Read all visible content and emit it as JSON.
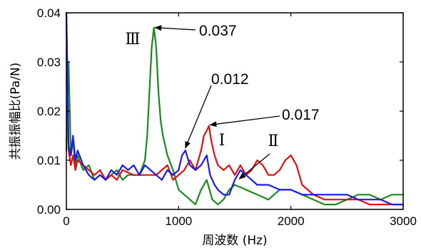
{
  "chart_data": {
    "type": "line",
    "xlabel": "周波数 (Hz)",
    "ylabel": "共振振幅比(Pa/N)",
    "xlim": [
      0,
      3000
    ],
    "ylim": [
      0,
      0.04
    ],
    "xticks": [
      0,
      1000,
      2000,
      3000
    ],
    "xtick_labels": [
      "0",
      "1000",
      "2000",
      "3000"
    ],
    "yticks": [
      0,
      0.01,
      0.02,
      0.03,
      0.04
    ],
    "ytick_labels": [
      "0.00",
      "0.01",
      "0.02",
      "0.03",
      "0.04"
    ],
    "grid": false,
    "series": [
      {
        "color": "#1a8a1a",
        "x": [
          0,
          20,
          40,
          60,
          80,
          100,
          150,
          200,
          250,
          300,
          350,
          400,
          450,
          500,
          550,
          600,
          650,
          700,
          720,
          740,
          760,
          780,
          800,
          820,
          840,
          860,
          880,
          900,
          950,
          1000,
          1050,
          1100,
          1150,
          1200,
          1250,
          1300,
          1350,
          1400,
          1450,
          1500,
          1600,
          1700,
          1800,
          1900,
          2000,
          2100,
          2200,
          2300,
          2400,
          2500,
          2600,
          2700,
          2800,
          2900,
          3000
        ],
        "y": [
          0.012,
          0.03,
          0.011,
          0.014,
          0.009,
          0.011,
          0.008,
          0.009,
          0.006,
          0.007,
          0.006,
          0.007,
          0.008,
          0.006,
          0.007,
          0.007,
          0.007,
          0.01,
          0.015,
          0.024,
          0.033,
          0.037,
          0.033,
          0.024,
          0.018,
          0.015,
          0.013,
          0.011,
          0.008,
          0.004,
          0.003,
          0.002,
          0.001,
          0.004,
          0.006,
          0.002,
          0.001,
          0.002,
          0.004,
          0.005,
          0.004,
          0.003,
          0.002,
          0.004,
          0.004,
          0.003,
          0.002,
          0.001,
          0.001,
          0.002,
          0.003,
          0.003,
          0.002,
          0.003,
          0.003
        ]
      },
      {
        "color": "#e01010",
        "x": [
          0,
          20,
          40,
          60,
          80,
          100,
          150,
          200,
          250,
          300,
          350,
          400,
          450,
          500,
          600,
          700,
          800,
          900,
          950,
          1000,
          1050,
          1100,
          1150,
          1200,
          1225,
          1250,
          1270,
          1290,
          1320,
          1350,
          1400,
          1450,
          1500,
          1550,
          1600,
          1650,
          1700,
          1750,
          1800,
          1850,
          1900,
          1950,
          2000,
          2050,
          2100,
          2200,
          2300,
          2400,
          2500,
          2600,
          2700,
          2800,
          2900,
          3000
        ],
        "y": [
          0.04,
          0.012,
          0.009,
          0.011,
          0.008,
          0.01,
          0.009,
          0.008,
          0.007,
          0.008,
          0.006,
          0.007,
          0.006,
          0.008,
          0.007,
          0.007,
          0.007,
          0.009,
          0.006,
          0.007,
          0.008,
          0.01,
          0.008,
          0.012,
          0.015,
          0.016,
          0.017,
          0.014,
          0.011,
          0.009,
          0.008,
          0.009,
          0.007,
          0.009,
          0.007,
          0.008,
          0.01,
          0.009,
          0.007,
          0.007,
          0.008,
          0.01,
          0.011,
          0.009,
          0.005,
          0.003,
          0.002,
          0.002,
          0.002,
          0.002,
          0.001,
          0.001,
          0.001,
          0.001
        ]
      },
      {
        "color": "#1a1aee",
        "x": [
          0,
          20,
          40,
          60,
          80,
          100,
          150,
          200,
          250,
          300,
          350,
          400,
          450,
          500,
          550,
          600,
          650,
          700,
          750,
          800,
          850,
          900,
          950,
          1000,
          1030,
          1060,
          1100,
          1150,
          1200,
          1250,
          1280,
          1320,
          1350,
          1400,
          1450,
          1500,
          1550,
          1600,
          1650,
          1700,
          1800,
          1900,
          2000,
          2100,
          2200,
          2300,
          2400,
          2500,
          2600,
          2700,
          2800,
          2900,
          3000
        ],
        "y": [
          0.04,
          0.013,
          0.011,
          0.015,
          0.01,
          0.012,
          0.009,
          0.007,
          0.006,
          0.007,
          0.006,
          0.008,
          0.007,
          0.009,
          0.008,
          0.009,
          0.007,
          0.009,
          0.008,
          0.007,
          0.006,
          0.008,
          0.007,
          0.008,
          0.011,
          0.012,
          0.009,
          0.008,
          0.009,
          0.011,
          0.007,
          0.005,
          0.004,
          0.003,
          0.003,
          0.006,
          0.008,
          0.007,
          0.006,
          0.005,
          0.005,
          0.004,
          0.004,
          0.003,
          0.003,
          0.003,
          0.003,
          0.003,
          0.002,
          0.002,
          0.002,
          0.001,
          0.001
        ]
      }
    ],
    "annotations": [
      {
        "label": "Ⅲ",
        "text": "0.037",
        "point": [
          790,
          0.037
        ]
      },
      {
        "label": "",
        "text": "0.012",
        "point": [
          1060,
          0.0125
        ]
      },
      {
        "label": "Ⅰ",
        "text": "0.017",
        "point": [
          1280,
          0.0172
        ]
      },
      {
        "label": "Ⅱ",
        "text": "",
        "point": [
          1540,
          0.0062
        ]
      }
    ]
  }
}
